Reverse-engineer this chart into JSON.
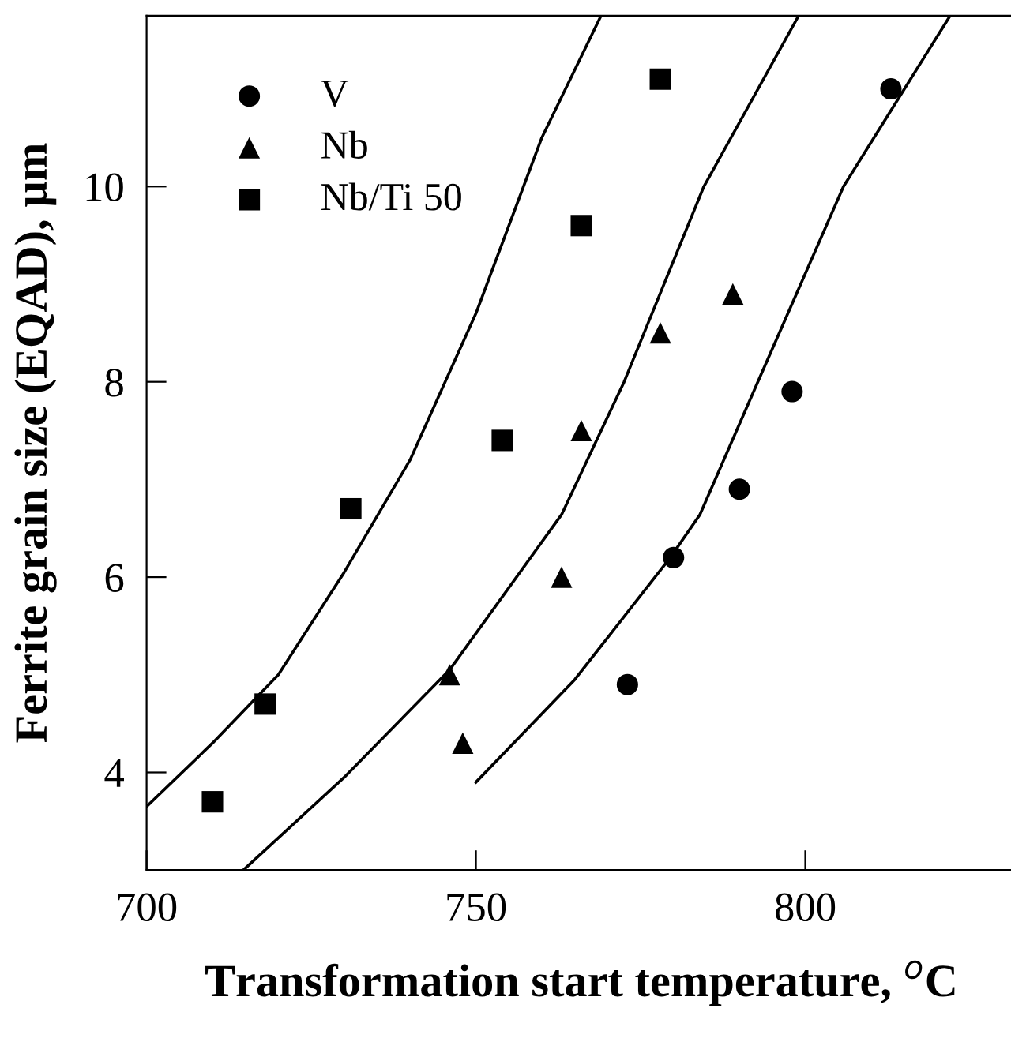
{
  "chart_data": {
    "type": "scatter",
    "xlabel": "Transformation start temperature, $^{o}$C",
    "ylabel": "Ferrite grain size (EQAD), µm",
    "xlim": [
      700,
      832
    ],
    "ylim": [
      3,
      11.75
    ],
    "xticks": [
      700,
      750,
      800
    ],
    "yticks": [
      4,
      6,
      8,
      10
    ],
    "grid": false,
    "legend": "top left",
    "series": [
      {
        "name": "V",
        "color": "#000000",
        "marker": "circle",
        "x": [
          773,
          780,
          790,
          798,
          813
        ],
        "values": [
          4.9,
          6.2,
          6.9,
          7.9,
          11.0
        ]
      },
      {
        "name": "Nb",
        "color": "#000000",
        "marker": "triangle",
        "x": [
          746,
          748,
          763,
          766,
          778,
          789
        ],
        "values": [
          5.0,
          4.3,
          6.0,
          7.5,
          8.5,
          8.9
        ]
      },
      {
        "name": "Nb/Ti 50",
        "color": "#000000",
        "marker": "square",
        "x": [
          710,
          718,
          731,
          754,
          766,
          778
        ],
        "values": [
          3.7,
          4.7,
          6.7,
          7.4,
          9.6,
          11.1
        ]
      },
      {
        "type": "line",
        "color": "#000000",
        "marker": "none",
        "line_style": "solid",
        "x": [
          700,
          710,
          720,
          730,
          740,
          750,
          760,
          769
        ],
        "values": [
          3.65,
          4.3,
          5.0,
          6.05,
          7.2,
          8.7,
          10.5,
          11.75
        ]
      },
      {
        "type": "line",
        "color": "#000000",
        "marker": "none",
        "line_style": "solid",
        "x": [
          714.7,
          730,
          746,
          763,
          772.5,
          784.6,
          799
        ],
        "values": [
          3.0,
          3.95,
          5.05,
          6.64,
          8.0,
          10.0,
          11.75
        ]
      },
      {
        "type": "line",
        "color": "#000000",
        "marker": "none",
        "line_style": "solid",
        "x": [
          750,
          765,
          779.5,
          784,
          792.8,
          805.8,
          822
        ],
        "values": [
          3.9,
          4.95,
          6.2,
          6.64,
          8.0,
          10.0,
          11.75
        ]
      }
    ]
  }
}
